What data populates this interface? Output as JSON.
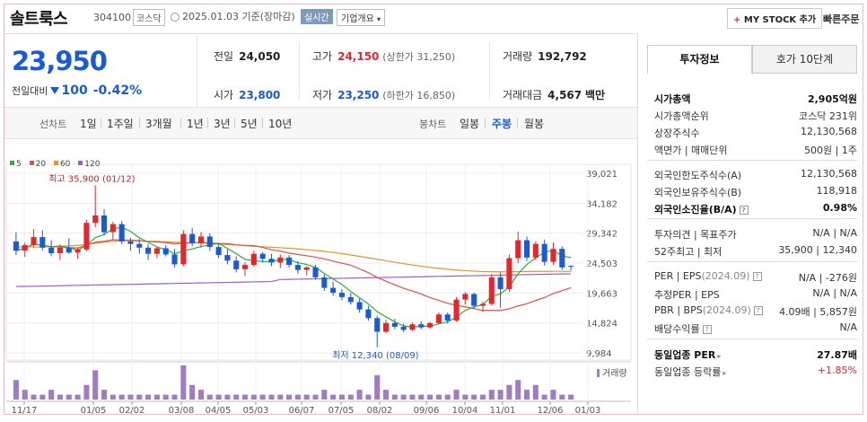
{
  "header": {
    "name": "솔트룩스",
    "code": "304100",
    "market": "코스닥",
    "date": "2025.01.03",
    "date_basis": "기준(장마감)",
    "realtime": "실시간",
    "company_info": "기업개요",
    "mystock_plus": "+",
    "mystock": "MY STOCK 추가",
    "quick_order": "빠른주문"
  },
  "price": {
    "current": "23,950",
    "change_label": "전일대비",
    "change_value": "100",
    "change_pct": "-0.42%"
  },
  "quote": {
    "prev_close_label": "전일",
    "prev_close": "24,050",
    "high_label": "고가",
    "high": "24,150",
    "upper_limit": "(상한가 31,250)",
    "volume_label": "거래량",
    "volume": "192,792",
    "open_label": "시가",
    "open": "23,800",
    "low_label": "저가",
    "low": "23,250",
    "lower_limit": "(하한가 16,850)",
    "amount_label": "거래대금",
    "amount": "4,567",
    "amount_unit": "백만"
  },
  "period_bar": {
    "line_label": "선차트",
    "line_items": [
      "1일",
      "1주일",
      "3개월",
      "1년",
      "3년",
      "5년",
      "10년"
    ],
    "candle_label": "봉차트",
    "candle_items": [
      "일봉",
      "주봉",
      "월봉"
    ],
    "selected": "주봉"
  },
  "side_panel": {
    "tab_active": "투자정보",
    "tab_other": "호가 10단계",
    "rows": [
      {
        "k": "시가총액",
        "v": "2,905억원"
      },
      {
        "k": "시가총액순위",
        "v": "코스닥 231위"
      },
      {
        "k": "상장주식수",
        "v": "12,130,568"
      },
      {
        "k": "액면가 | 매매단위",
        "v": "500원 | 1주"
      },
      {
        "k": "외국인한도주식수(A)",
        "v": "12,130,568"
      },
      {
        "k": "외국인보유주식수(B)",
        "v": "118,918"
      },
      {
        "k": "외국인소진율(B/A)",
        "v": "0.98%"
      },
      {
        "k": "투자의견 | 목표주가",
        "v": "N/A | N/A"
      },
      {
        "k": "52주최고 | 최저",
        "v": "35,900 | 12,340"
      },
      {
        "k": "PER | EPS",
        "k2": "(2024.09)",
        "v": "N/A | -276원"
      },
      {
        "k": "추정PER | EPS",
        "v": "N/A | N/A"
      },
      {
        "k": "PBR | BPS",
        "k2": "(2024.09)",
        "v": "4.09배 | 5,857원"
      },
      {
        "k": "배당수익률",
        "v": "N/A"
      },
      {
        "k": "동일업종 PER",
        "v": "27.87배"
      },
      {
        "k": "동일업종 등락률",
        "v": "+1.85%"
      }
    ],
    "help_glyph": "?",
    "arrow_glyph": "▸"
  },
  "colors": {
    "up": "#e6252d",
    "down": "#1a5ad5",
    "ma5": "#2eae3b",
    "ma20": "#e05050",
    "ma60": "#e4962a",
    "ma120": "#9a60c4",
    "volume": "#a07cc0"
  },
  "chart_data": {
    "type": "candlestick",
    "interval": "weekly",
    "ma_legend": [
      {
        "name": "5",
        "color": "#2eae3b"
      },
      {
        "name": "20",
        "color": "#e05050"
      },
      {
        "name": "60",
        "color": "#e4962a"
      },
      {
        "name": "120",
        "color": "#9a60c4"
      }
    ],
    "y_ticks": [
      39021,
      34182,
      29342,
      24503,
      19663,
      14824,
      9984
    ],
    "y_range": [
      9984,
      39021
    ],
    "x_ticks": [
      "11/17",
      "01/05",
      "02/02",
      "03/08",
      "04/05",
      "05/03",
      "06/07",
      "07/05",
      "08/02",
      "09/06",
      "10/04",
      "11/01",
      "12/06",
      "01/03"
    ],
    "high_label": "최고 35,900 (01/12)",
    "low_label": "최저 12,340 (08/09)",
    "volume_label": "거래량",
    "candles": [
      [
        28000,
        29500,
        25800,
        26500
      ],
      [
        26500,
        27800,
        25500,
        27400
      ],
      [
        27400,
        30000,
        27000,
        28700
      ],
      [
        28700,
        29800,
        26500,
        27000
      ],
      [
        27000,
        28200,
        25600,
        26100
      ],
      [
        26100,
        27500,
        25000,
        27000
      ],
      [
        27000,
        28500,
        26000,
        26200
      ],
      [
        26200,
        27000,
        25200,
        26700
      ],
      [
        26700,
        31500,
        26400,
        31000
      ],
      [
        31000,
        35900,
        30300,
        32200
      ],
      [
        32200,
        33200,
        29000,
        29500
      ],
      [
        29500,
        31200,
        28200,
        30800
      ],
      [
        30800,
        31300,
        27500,
        28000
      ],
      [
        28000,
        28600,
        26500,
        27600
      ],
      [
        27600,
        28400,
        26000,
        27000
      ],
      [
        27000,
        27600,
        25000,
        26000
      ],
      [
        26000,
        27200,
        25300,
        26900
      ],
      [
        26900,
        27400,
        25600,
        25900
      ],
      [
        25900,
        26800,
        23800,
        24300
      ],
      [
        24300,
        29800,
        24000,
        29200
      ],
      [
        29200,
        30200,
        27200,
        27700
      ],
      [
        27700,
        29500,
        27000,
        28800
      ],
      [
        28800,
        29300,
        26500,
        27100
      ],
      [
        27100,
        27700,
        25300,
        25800
      ],
      [
        25800,
        26700,
        24300,
        24900
      ],
      [
        24900,
        25600,
        23000,
        23500
      ],
      [
        23500,
        24600,
        22400,
        24200
      ],
      [
        24200,
        26500,
        23900,
        26000
      ],
      [
        26000,
        26300,
        24600,
        25200
      ],
      [
        25200,
        26000,
        24000,
        24600
      ],
      [
        24600,
        25900,
        23700,
        25400
      ],
      [
        25400,
        25800,
        23800,
        24200
      ],
      [
        24200,
        24800,
        22800,
        23400
      ],
      [
        23400,
        24000,
        22500,
        23800
      ],
      [
        23800,
        24200,
        21800,
        22200
      ],
      [
        22200,
        22700,
        20000,
        20500
      ],
      [
        20500,
        21500,
        19200,
        19700
      ],
      [
        19700,
        20300,
        18500,
        19000
      ],
      [
        19000,
        19700,
        17800,
        18200
      ],
      [
        18200,
        18800,
        16500,
        17000
      ],
      [
        17000,
        17600,
        15200,
        15600
      ],
      [
        15600,
        16000,
        12340,
        13400
      ],
      [
        13400,
        15300,
        13100,
        14800
      ],
      [
        14800,
        15500,
        13800,
        14200
      ],
      [
        14200,
        14700,
        13300,
        13700
      ],
      [
        13700,
        14900,
        13500,
        14600
      ],
      [
        14600,
        15100,
        13800,
        14100
      ],
      [
        14100,
        15000,
        13900,
        14800
      ],
      [
        14800,
        16500,
        14600,
        16200
      ],
      [
        16200,
        16500,
        14700,
        15200
      ],
      [
        15200,
        19000,
        15000,
        18600
      ],
      [
        18600,
        19800,
        17800,
        19500
      ],
      [
        19500,
        19700,
        17200,
        17600
      ],
      [
        17600,
        18300,
        16600,
        17900
      ],
      [
        17900,
        22700,
        17600,
        22200
      ],
      [
        22200,
        23000,
        17300,
        20300
      ],
      [
        20300,
        25900,
        19800,
        25300
      ],
      [
        25300,
        29600,
        24500,
        28200
      ],
      [
        28200,
        28800,
        24800,
        25400
      ],
      [
        25400,
        28000,
        25000,
        27600
      ],
      [
        27600,
        28300,
        24100,
        24700
      ],
      [
        24700,
        27800,
        24200,
        26800
      ],
      [
        26800,
        27200,
        23400,
        23800
      ],
      [
        24050,
        24150,
        23250,
        23950
      ]
    ],
    "volumes": [
      4,
      2,
      1,
      1,
      2,
      1,
      1,
      1,
      3,
      6,
      2,
      1,
      1,
      1,
      1,
      1,
      1,
      1,
      1,
      7,
      3,
      2,
      1,
      1,
      1,
      1,
      1,
      1,
      1,
      1,
      1,
      1,
      1,
      1,
      1,
      2,
      1,
      1,
      1,
      2,
      1,
      5,
      2,
      1,
      1,
      1,
      1,
      1,
      1,
      1,
      2,
      1,
      1,
      1,
      2,
      2,
      3,
      4,
      2,
      3,
      1,
      2,
      1,
      1
    ]
  }
}
